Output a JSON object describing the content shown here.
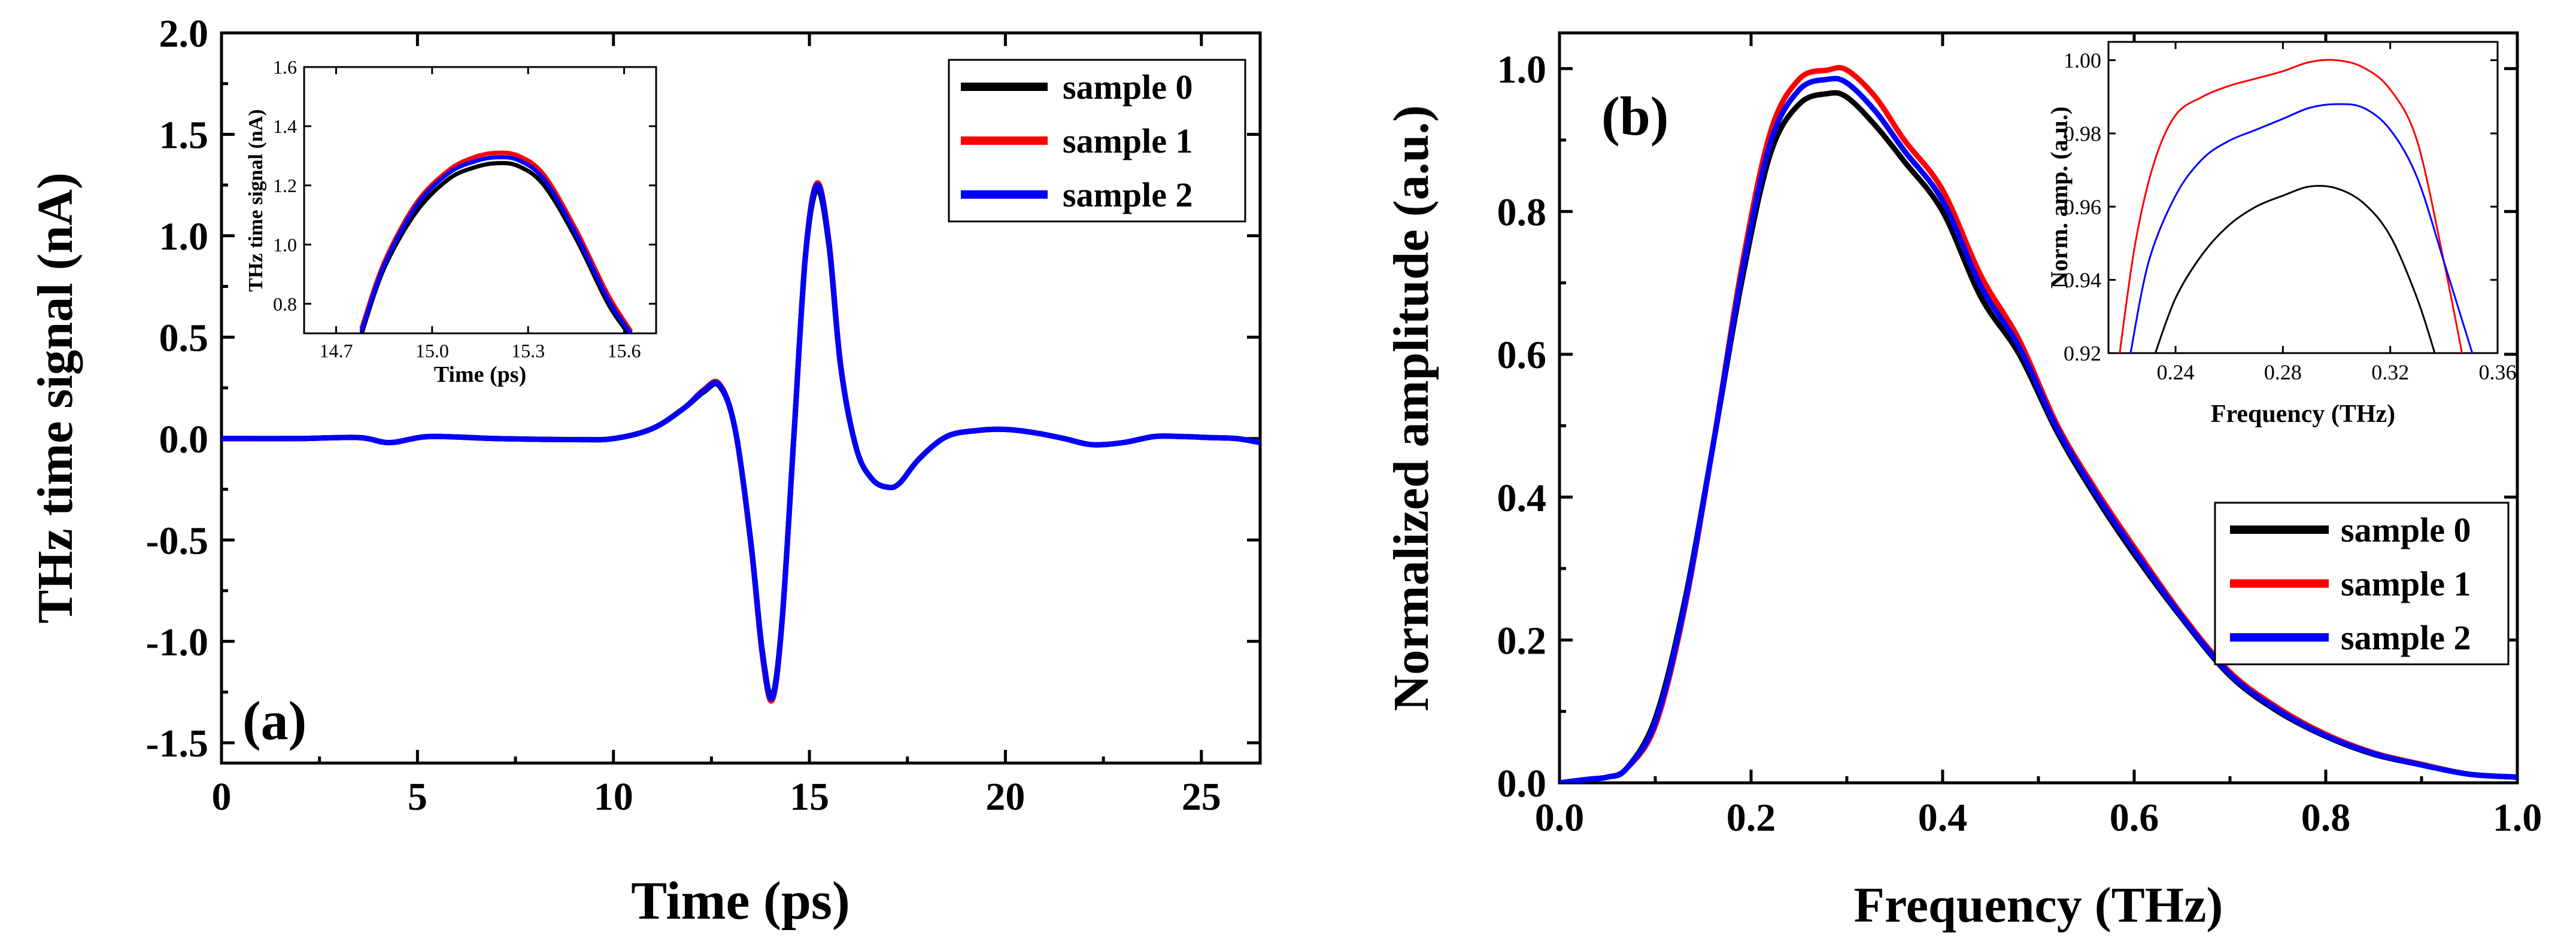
{
  "chart_data": [
    {
      "id": "a",
      "type": "line",
      "panel_label": "(a)",
      "xlabel": "Time (ps)",
      "ylabel": "THz time signal (nA)",
      "xlim": [
        0,
        26.5
      ],
      "ylim": [
        -1.6,
        2.0
      ],
      "xticks": [
        0,
        5,
        10,
        15,
        20,
        25
      ],
      "xtick_labels": [
        "0",
        "5",
        "10",
        "15",
        "20",
        "25"
      ],
      "yticks": [
        -1.5,
        -1.0,
        -0.5,
        0.0,
        0.5,
        1.0,
        1.5,
        2.0
      ],
      "ytick_labels": [
        "-1.5",
        "-1.0",
        "-0.5",
        "0.0",
        "0.5",
        "1.0",
        "1.5",
        "2.0"
      ],
      "legend_position": "top-right",
      "series": [
        {
          "name": "sample 0",
          "color": "#000000",
          "x": [
            0,
            2,
            3.5,
            4.3,
            5.3,
            7,
            9,
            10,
            11,
            11.8,
            12.3,
            12.7,
            13.1,
            13.5,
            13.8,
            14.05,
            14.3,
            14.6,
            14.9,
            15.2,
            15.5,
            15.8,
            16.2,
            16.6,
            17.0,
            17.3,
            17.8,
            18.5,
            19.3,
            20.0,
            20.7,
            21.5,
            22.2,
            23.0,
            23.8,
            24.5,
            25.2,
            25.9,
            26.5
          ],
          "y": [
            0,
            0,
            0.005,
            -0.02,
            0.01,
            0,
            -0.005,
            0,
            0.05,
            0.15,
            0.23,
            0.26,
            0.05,
            -0.5,
            -1.05,
            -1.27,
            -0.9,
            0.0,
            0.9,
            1.23,
            0.95,
            0.35,
            -0.05,
            -0.2,
            -0.24,
            -0.22,
            -0.1,
            0.01,
            0.04,
            0.045,
            0.03,
            0.0,
            -0.03,
            -0.02,
            0.01,
            0.01,
            0.005,
            0.0,
            -0.02
          ]
        },
        {
          "name": "sample 1",
          "color": "#ff0000",
          "x": [
            0,
            2,
            3.5,
            4.3,
            5.3,
            7,
            9,
            10,
            11,
            11.8,
            12.3,
            12.7,
            13.1,
            13.5,
            13.8,
            14.05,
            14.3,
            14.6,
            14.9,
            15.2,
            15.5,
            15.8,
            16.2,
            16.6,
            17.0,
            17.3,
            17.8,
            18.5,
            19.3,
            20.0,
            20.7,
            21.5,
            22.2,
            23.0,
            23.8,
            24.5,
            25.2,
            25.9,
            26.5
          ],
          "y": [
            0,
            0,
            0.005,
            -0.02,
            0.01,
            0,
            -0.005,
            0,
            0.05,
            0.15,
            0.24,
            0.27,
            0.05,
            -0.51,
            -1.07,
            -1.29,
            -0.91,
            0.0,
            0.91,
            1.26,
            0.97,
            0.36,
            -0.05,
            -0.2,
            -0.24,
            -0.22,
            -0.1,
            0.01,
            0.04,
            0.045,
            0.03,
            0.0,
            -0.03,
            -0.02,
            0.01,
            0.01,
            0.005,
            0.0,
            -0.02
          ]
        },
        {
          "name": "sample 2",
          "color": "#0000ff",
          "x": [
            0,
            2,
            3.5,
            4.3,
            5.3,
            7,
            9,
            10,
            11,
            11.8,
            12.3,
            12.7,
            13.1,
            13.5,
            13.8,
            14.05,
            14.3,
            14.6,
            14.9,
            15.2,
            15.5,
            15.8,
            16.2,
            16.6,
            17.0,
            17.3,
            17.8,
            18.5,
            19.3,
            20.0,
            20.7,
            21.5,
            22.2,
            23.0,
            23.8,
            24.5,
            25.2,
            25.9,
            26.5
          ],
          "y": [
            0,
            0,
            0.005,
            -0.02,
            0.01,
            0,
            -0.005,
            0,
            0.05,
            0.15,
            0.235,
            0.265,
            0.05,
            -0.505,
            -1.06,
            -1.28,
            -0.905,
            0.0,
            0.905,
            1.25,
            0.96,
            0.355,
            -0.05,
            -0.2,
            -0.24,
            -0.22,
            -0.1,
            0.01,
            0.04,
            0.045,
            0.03,
            0.0,
            -0.03,
            -0.02,
            0.01,
            0.01,
            0.005,
            0.0,
            -0.02
          ]
        }
      ],
      "inset": {
        "xlabel": "Time (ps)",
        "ylabel": "THz time signal (nA)",
        "xlim": [
          14.6,
          15.7
        ],
        "ylim": [
          0.7,
          1.6
        ],
        "xticks": [
          14.7,
          15.0,
          15.3,
          15.6
        ],
        "xtick_labels": [
          "14.7",
          "15.0",
          "15.3",
          "15.6"
        ],
        "yticks": [
          0.8,
          1.0,
          1.2,
          1.4,
          1.6
        ],
        "ytick_labels": [
          "0.8",
          "1.0",
          "1.2",
          "1.4",
          "1.6"
        ],
        "series": [
          {
            "name": "sample 0",
            "color": "#000000",
            "x": [
              14.78,
              14.85,
              14.95,
              15.05,
              15.13,
              15.2,
              15.27,
              15.35,
              15.45,
              15.55,
              15.62
            ],
            "y": [
              0.7,
              0.92,
              1.11,
              1.22,
              1.26,
              1.275,
              1.265,
              1.2,
              1.02,
              0.8,
              0.69
            ]
          },
          {
            "name": "sample 1",
            "color": "#ff0000",
            "x": [
              14.78,
              14.85,
              14.95,
              15.05,
              15.13,
              15.2,
              15.27,
              15.35,
              15.45,
              15.55,
              15.62
            ],
            "y": [
              0.72,
              0.94,
              1.14,
              1.25,
              1.295,
              1.31,
              1.3,
              1.235,
              1.05,
              0.83,
              0.71
            ]
          },
          {
            "name": "sample 2",
            "color": "#0000ff",
            "x": [
              14.78,
              14.85,
              14.95,
              15.05,
              15.13,
              15.2,
              15.27,
              15.35,
              15.45,
              15.55,
              15.62
            ],
            "y": [
              0.71,
              0.93,
              1.13,
              1.24,
              1.28,
              1.295,
              1.285,
              1.22,
              1.035,
              0.815,
              0.7
            ]
          }
        ]
      }
    },
    {
      "id": "b",
      "type": "line",
      "panel_label": "(b)",
      "xlabel": "Frequency (THz)",
      "ylabel": "Normalized amplitude (a.u.)",
      "xlim": [
        0.0,
        1.0
      ],
      "ylim": [
        0.0,
        1.05
      ],
      "xticks": [
        0.0,
        0.2,
        0.4,
        0.6,
        0.8,
        1.0
      ],
      "xtick_labels": [
        "0.0",
        "0.2",
        "0.4",
        "0.6",
        "0.8",
        "1.0"
      ],
      "yticks": [
        0.0,
        0.2,
        0.4,
        0.6,
        0.8,
        1.0
      ],
      "ytick_labels": [
        "0.0",
        "0.2",
        "0.4",
        "0.6",
        "0.8",
        "1.0"
      ],
      "legend_position": "bottom-right",
      "series": [
        {
          "name": "sample 0",
          "color": "#000000",
          "x": [
            0.0,
            0.03,
            0.05,
            0.07,
            0.1,
            0.13,
            0.16,
            0.19,
            0.22,
            0.25,
            0.28,
            0.3,
            0.33,
            0.36,
            0.4,
            0.44,
            0.48,
            0.52,
            0.56,
            0.6,
            0.65,
            0.7,
            0.75,
            0.8,
            0.85,
            0.9,
            0.95,
            1.0
          ],
          "y": [
            0.0,
            0.005,
            0.008,
            0.02,
            0.09,
            0.25,
            0.47,
            0.7,
            0.88,
            0.95,
            0.965,
            0.96,
            0.92,
            0.87,
            0.8,
            0.68,
            0.6,
            0.49,
            0.4,
            0.32,
            0.23,
            0.15,
            0.1,
            0.065,
            0.04,
            0.025,
            0.012,
            0.008
          ]
        },
        {
          "name": "sample 1",
          "color": "#ff0000",
          "x": [
            0.0,
            0.03,
            0.05,
            0.07,
            0.1,
            0.13,
            0.16,
            0.19,
            0.22,
            0.25,
            0.28,
            0.3,
            0.33,
            0.36,
            0.4,
            0.44,
            0.48,
            0.52,
            0.56,
            0.6,
            0.65,
            0.7,
            0.75,
            0.8,
            0.85,
            0.9,
            0.95,
            1.0
          ],
          "y": [
            0.0,
            0.005,
            0.008,
            0.02,
            0.08,
            0.24,
            0.47,
            0.72,
            0.91,
            0.985,
            0.998,
            0.998,
            0.96,
            0.9,
            0.83,
            0.71,
            0.62,
            0.5,
            0.41,
            0.33,
            0.235,
            0.155,
            0.105,
            0.068,
            0.042,
            0.026,
            0.012,
            0.008
          ]
        },
        {
          "name": "sample 2",
          "color": "#0000ff",
          "x": [
            0.0,
            0.03,
            0.05,
            0.07,
            0.1,
            0.13,
            0.16,
            0.19,
            0.22,
            0.25,
            0.28,
            0.3,
            0.33,
            0.36,
            0.4,
            0.44,
            0.48,
            0.52,
            0.56,
            0.6,
            0.65,
            0.7,
            0.75,
            0.8,
            0.85,
            0.9,
            0.95,
            1.0
          ],
          "y": [
            0.0,
            0.005,
            0.008,
            0.02,
            0.085,
            0.245,
            0.47,
            0.71,
            0.895,
            0.97,
            0.985,
            0.98,
            0.94,
            0.885,
            0.815,
            0.695,
            0.61,
            0.495,
            0.405,
            0.325,
            0.232,
            0.152,
            0.102,
            0.066,
            0.041,
            0.025,
            0.012,
            0.008
          ]
        }
      ],
      "inset": {
        "xlabel": "Frequency (THz)",
        "ylabel": "Norm. amp. (a.u.)",
        "xlim": [
          0.215,
          0.36
        ],
        "ylim": [
          0.92,
          1.005
        ],
        "xticks": [
          0.24,
          0.28,
          0.32,
          0.36
        ],
        "xtick_labels": [
          "0.24",
          "0.28",
          "0.32",
          "0.36"
        ],
        "yticks": [
          0.92,
          0.94,
          0.96,
          0.98,
          1.0
        ],
        "ytick_labels": [
          "0.92",
          "0.94",
          "0.96",
          "0.98",
          "1.00"
        ],
        "series": [
          {
            "name": "sample 0",
            "color": "#000000",
            "x": [
              0.232,
              0.24,
              0.25,
              0.26,
              0.27,
              0.28,
              0.29,
              0.3,
              0.31,
              0.32,
              0.33,
              0.337
            ],
            "y": [
              0.919,
              0.935,
              0.947,
              0.955,
              0.96,
              0.963,
              0.9655,
              0.965,
              0.961,
              0.952,
              0.935,
              0.919
            ]
          },
          {
            "name": "sample 1",
            "color": "#ff0000",
            "x": [
              0.219,
              0.225,
              0.232,
              0.24,
              0.25,
              0.26,
              0.27,
              0.28,
              0.29,
              0.3,
              0.31,
              0.32,
              0.33,
              0.34,
              0.347
            ],
            "y": [
              0.919,
              0.95,
              0.972,
              0.985,
              0.99,
              0.993,
              0.995,
              0.997,
              0.9995,
              1.0,
              0.998,
              0.992,
              0.978,
              0.945,
              0.919
            ]
          },
          {
            "name": "sample 2",
            "color": "#0000ff",
            "x": [
              0.223,
              0.23,
              0.24,
              0.25,
              0.26,
              0.27,
              0.28,
              0.29,
              0.3,
              0.31,
              0.32,
              0.33,
              0.34,
              0.351
            ],
            "y": [
              0.919,
              0.945,
              0.963,
              0.973,
              0.978,
              0.981,
              0.984,
              0.987,
              0.988,
              0.987,
              0.981,
              0.968,
              0.945,
              0.919
            ]
          }
        ]
      }
    }
  ]
}
